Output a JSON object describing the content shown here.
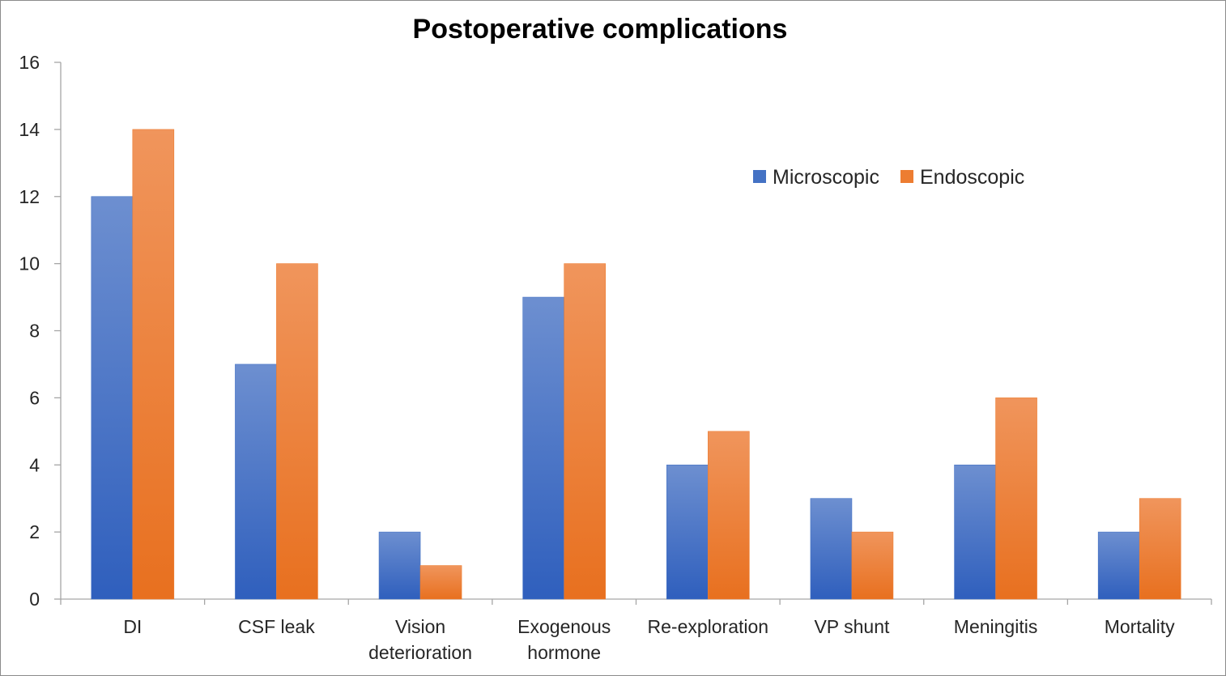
{
  "chart_data": {
    "type": "bar",
    "title": "Postoperative complications",
    "xlabel": "",
    "ylabel": "",
    "ylim": [
      0,
      16
    ],
    "yticks": [
      0,
      2,
      4,
      6,
      8,
      10,
      12,
      14,
      16
    ],
    "grid": false,
    "legend_position": "top-right",
    "categories": [
      [
        "DI"
      ],
      [
        "CSF leak"
      ],
      [
        "Vision",
        "deterioration"
      ],
      [
        "Exogenous",
        "hormone"
      ],
      [
        "Re-exploration"
      ],
      [
        "VP shunt"
      ],
      [
        "Meningitis"
      ],
      [
        "Mortality"
      ]
    ],
    "series": [
      {
        "name": "Microscopic",
        "color": "#4472C4",
        "values": [
          12,
          7,
          2,
          9,
          4,
          3,
          4,
          2
        ]
      },
      {
        "name": "Endoscopic",
        "color": "#ED7D31",
        "values": [
          14,
          10,
          1,
          10,
          5,
          2,
          6,
          3
        ]
      }
    ]
  }
}
